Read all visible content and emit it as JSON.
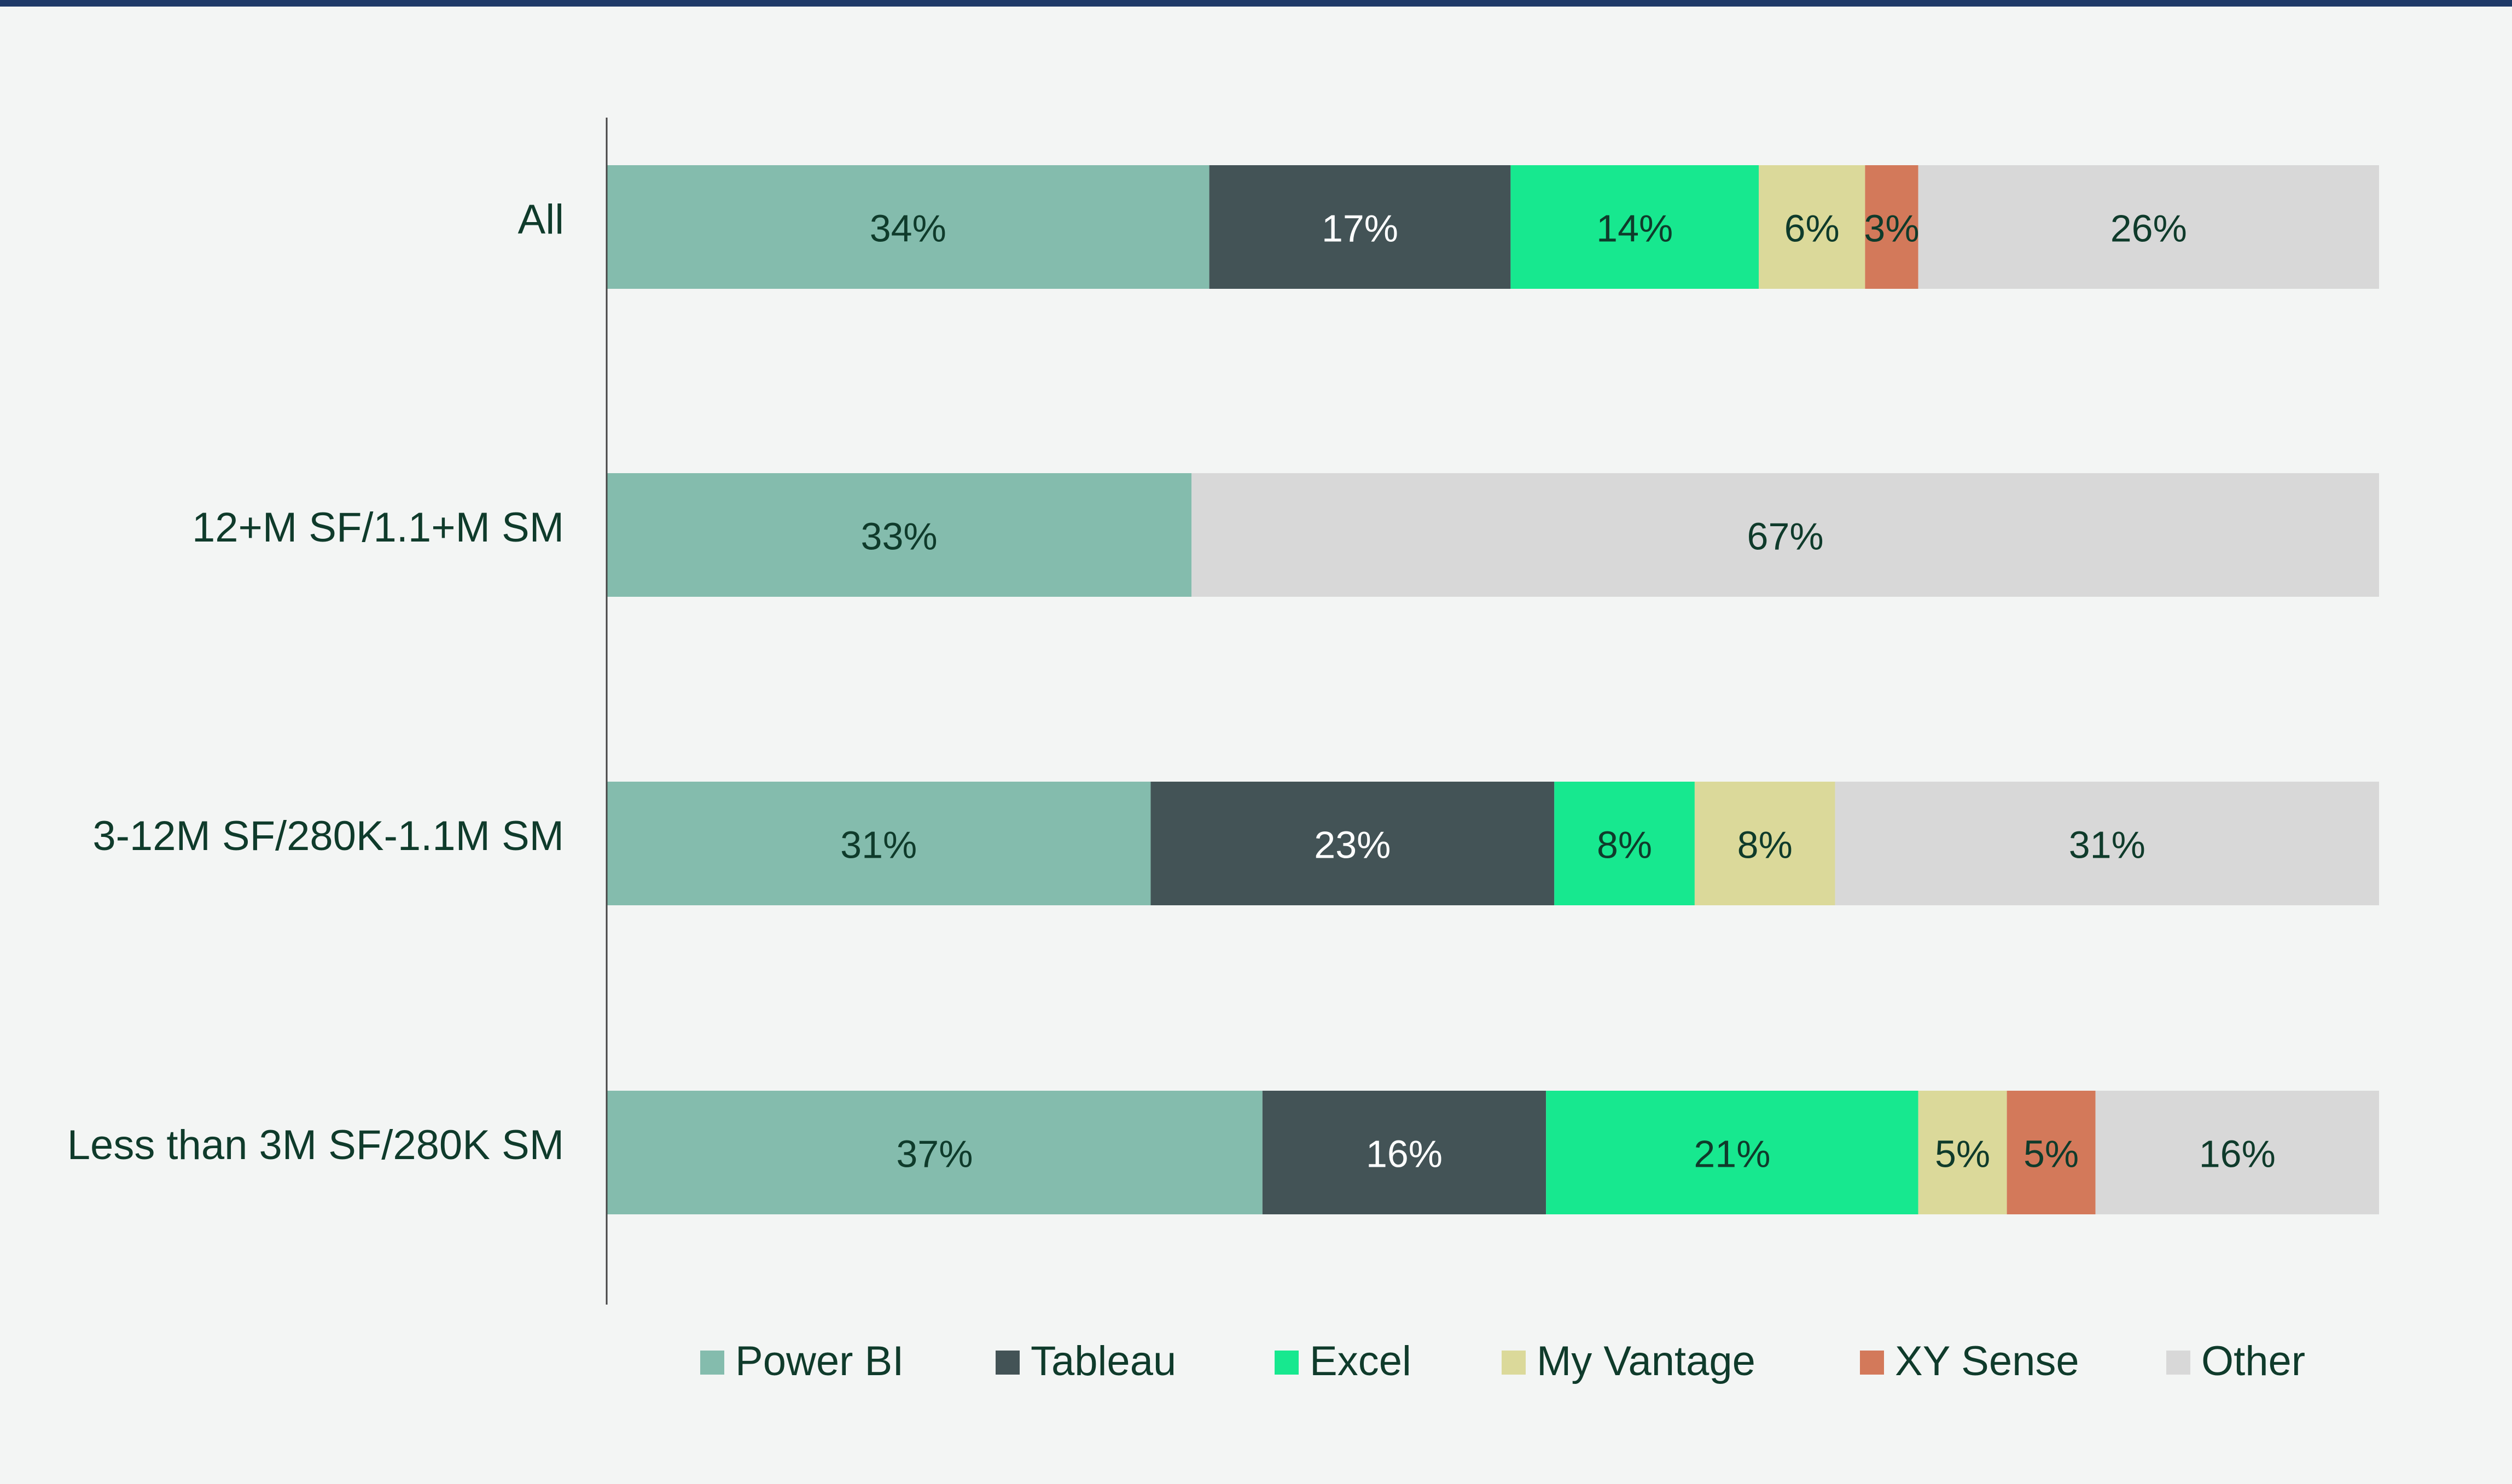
{
  "chart_data": {
    "type": "bar",
    "orientation": "horizontal",
    "stacked": true,
    "categories": [
      "All",
      "12+M SF/1.1+M SM",
      "3-12M SF/280K-1.1M SM",
      "Less than 3M SF/280K SM"
    ],
    "series": [
      {
        "name": "Power BI",
        "color": "#84bcad",
        "label_color": "#0f3b2b",
        "values": [
          34,
          33,
          31,
          37
        ]
      },
      {
        "name": "Tableau",
        "color": "#435356",
        "label_color": "#ffffff",
        "values": [
          17,
          0,
          23,
          16
        ]
      },
      {
        "name": "Excel",
        "color": "#17e88f",
        "label_color": "#0f3b2b",
        "values": [
          14,
          0,
          8,
          21
        ]
      },
      {
        "name": "My Vantage",
        "color": "#dbd99a",
        "label_color": "#0f3b2b",
        "values": [
          6,
          0,
          8,
          5
        ]
      },
      {
        "name": "XY Sense",
        "color": "#d3795a",
        "label_color": "#0f3b2b",
        "values": [
          3,
          0,
          0,
          5
        ]
      },
      {
        "name": "Other",
        "color": "#d8d8d8",
        "label_color": "#0f3b2b",
        "values": [
          26,
          67,
          31,
          16
        ]
      }
    ],
    "value_suffix": "%",
    "xlim": [
      0,
      100
    ],
    "grid": false,
    "legend_position": "bottom",
    "title": "",
    "xlabel": "",
    "ylabel": ""
  }
}
